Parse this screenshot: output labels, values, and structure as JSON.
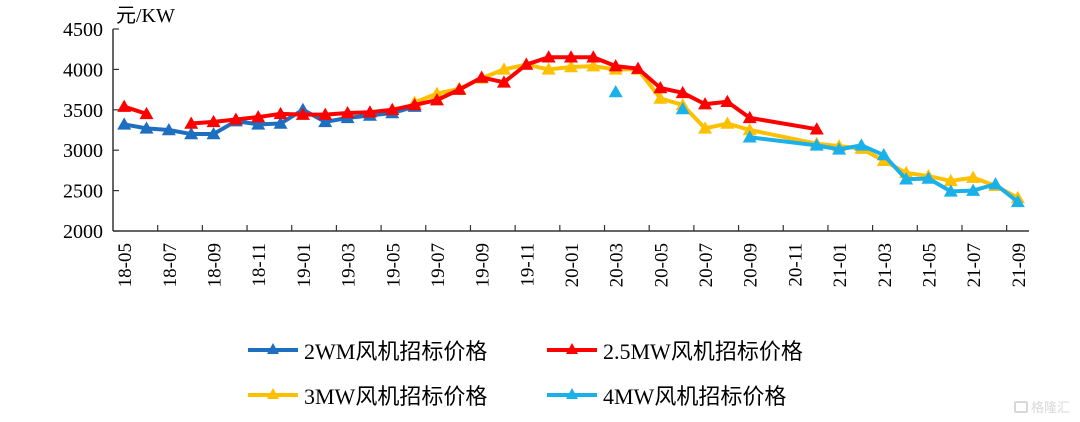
{
  "chart_data": {
    "type": "line",
    "title": "",
    "ylabel": "元/KW",
    "xlabel": "",
    "ylim": [
      2000,
      4500
    ],
    "yticks": [
      2000,
      2500,
      3000,
      3500,
      4000,
      4500
    ],
    "grid": false,
    "legend_position": "bottom",
    "months": [
      "18-05",
      "18-06",
      "18-07",
      "18-08",
      "18-09",
      "18-10",
      "18-11",
      "18-12",
      "19-01",
      "19-02",
      "19-03",
      "19-04",
      "19-05",
      "19-06",
      "19-07",
      "19-08",
      "19-09",
      "19-10",
      "19-11",
      "19-12",
      "20-01",
      "20-02",
      "20-03",
      "20-04",
      "20-05",
      "20-06",
      "20-07",
      "20-08",
      "20-09",
      "20-10",
      "20-11",
      "20-12",
      "21-01",
      "21-02",
      "21-03",
      "21-04",
      "21-05",
      "21-06",
      "21-07",
      "21-08",
      "21-09"
    ],
    "xtick_labels": [
      "18-05",
      "18-07",
      "18-09",
      "18-11",
      "19-01",
      "19-03",
      "19-05",
      "19-07",
      "19-09",
      "19-11",
      "20-01",
      "20-03",
      "20-05",
      "20-07",
      "20-09",
      "20-11",
      "21-01",
      "21-03",
      "21-05",
      "21-07",
      "21-09"
    ],
    "series": [
      {
        "name": "2WM风机招标价格",
        "color": "#1f6fc0",
        "points": [
          [
            0,
            3320
          ],
          [
            1,
            3270
          ],
          [
            2,
            3250
          ],
          [
            3,
            3200
          ],
          [
            4,
            3200
          ],
          [
            5,
            3360
          ],
          [
            6,
            3320
          ],
          [
            7,
            3330
          ],
          [
            8,
            3500
          ],
          [
            9,
            3350
          ],
          [
            10,
            3400
          ],
          [
            11,
            3430
          ],
          [
            12,
            3460
          ],
          [
            13,
            3540
          ]
        ]
      },
      {
        "name": "2.5MW风机招标价格",
        "color": "#ff0000",
        "segments": [
          [
            [
              0,
              3540
            ],
            [
              1,
              3450
            ]
          ],
          [
            [
              3,
              3330
            ],
            [
              4,
              3350
            ],
            [
              5,
              3380
            ],
            [
              6,
              3410
            ],
            [
              7,
              3450
            ],
            [
              8,
              3440
            ],
            [
              9,
              3440
            ],
            [
              10,
              3460
            ],
            [
              11,
              3470
            ],
            [
              12,
              3500
            ],
            [
              13,
              3560
            ],
            [
              14,
              3620
            ],
            [
              15,
              3750
            ],
            [
              16,
              3900
            ],
            [
              17,
              3840
            ],
            [
              18,
              4060
            ],
            [
              19,
              4150
            ],
            [
              20,
              4150
            ],
            [
              21,
              4150
            ],
            [
              22,
              4040
            ],
            [
              23,
              4010
            ],
            [
              24,
              3770
            ],
            [
              25,
              3710
            ],
            [
              26,
              3570
            ],
            [
              27,
              3600
            ],
            [
              28,
              3400
            ],
            [
              31,
              3260
            ]
          ]
        ]
      },
      {
        "name": "3MW风机招标价格",
        "color": "#ffc000",
        "points": [
          [
            13,
            3590
          ],
          [
            14,
            3700
          ],
          [
            15,
            3760
          ],
          [
            16,
            3890
          ],
          [
            17,
            4000
          ],
          [
            18,
            4060
          ],
          [
            19,
            4000
          ],
          [
            20,
            4030
          ],
          [
            21,
            4040
          ],
          [
            22,
            4000
          ],
          [
            23,
            4000
          ],
          [
            24,
            3640
          ],
          [
            25,
            3560
          ],
          [
            26,
            3270
          ],
          [
            27,
            3330
          ],
          [
            28,
            3250
          ],
          [
            31,
            3080
          ],
          [
            32,
            3050
          ],
          [
            33,
            3020
          ],
          [
            34,
            2870
          ],
          [
            35,
            2720
          ],
          [
            36,
            2680
          ],
          [
            37,
            2620
          ],
          [
            38,
            2660
          ],
          [
            39,
            2560
          ],
          [
            40,
            2410
          ]
        ]
      },
      {
        "name": "4MW风机招标价格",
        "color": "#1ab0ea",
        "isolated": [
          [
            22,
            3720
          ],
          [
            25,
            3510
          ]
        ],
        "points": [
          [
            28,
            3160
          ],
          [
            31,
            3060
          ],
          [
            32,
            3010
          ],
          [
            33,
            3060
          ],
          [
            34,
            2940
          ],
          [
            35,
            2640
          ],
          [
            36,
            2650
          ],
          [
            37,
            2490
          ],
          [
            38,
            2500
          ],
          [
            39,
            2580
          ],
          [
            40,
            2360
          ]
        ]
      }
    ]
  },
  "legend": {
    "items": [
      {
        "label": "2WM风机招标价格",
        "color": "#1f6fc0"
      },
      {
        "label": "2.5MW风机招标价格",
        "color": "#ff0000"
      },
      {
        "label": "3MW风机招标价格",
        "color": "#ffc000"
      },
      {
        "label": "4MW风机招标价格",
        "color": "#1ab0ea"
      }
    ]
  },
  "watermark": {
    "text": "格隆汇"
  }
}
